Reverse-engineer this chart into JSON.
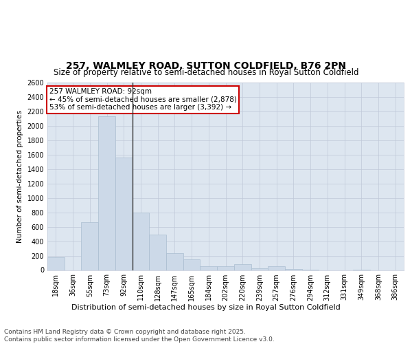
{
  "title_line1": "257, WALMLEY ROAD, SUTTON COLDFIELD, B76 2PN",
  "title_line2": "Size of property relative to semi-detached houses in Royal Sutton Coldfield",
  "xlabel": "Distribution of semi-detached houses by size in Royal Sutton Coldfield",
  "ylabel": "Number of semi-detached properties",
  "categories": [
    "18sqm",
    "36sqm",
    "55sqm",
    "73sqm",
    "92sqm",
    "110sqm",
    "128sqm",
    "147sqm",
    "165sqm",
    "184sqm",
    "202sqm",
    "220sqm",
    "239sqm",
    "257sqm",
    "276sqm",
    "294sqm",
    "312sqm",
    "331sqm",
    "349sqm",
    "368sqm",
    "386sqm"
  ],
  "values": [
    175,
    0,
    660,
    2130,
    1560,
    800,
    490,
    230,
    150,
    55,
    55,
    85,
    20,
    55,
    18,
    8,
    0,
    0,
    8,
    0,
    0
  ],
  "bar_color": "#ccd9e8",
  "bar_edge_color": "#aabdd0",
  "highlight_index": 4,
  "highlight_line_color": "#333333",
  "annotation_text": "257 WALMLEY ROAD: 92sqm\n← 45% of semi-detached houses are smaller (2,878)\n53% of semi-detached houses are larger (3,392) →",
  "annotation_box_color": "#ffffff",
  "annotation_box_edge_color": "#cc0000",
  "ylim": [
    0,
    2600
  ],
  "yticks": [
    0,
    200,
    400,
    600,
    800,
    1000,
    1200,
    1400,
    1600,
    1800,
    2000,
    2200,
    2400,
    2600
  ],
  "grid_color": "#c0c8d8",
  "bg_color": "#dde6f0",
  "footer_text": "Contains HM Land Registry data © Crown copyright and database right 2025.\nContains public sector information licensed under the Open Government Licence v3.0.",
  "title_fontsize": 10,
  "subtitle_fontsize": 8.5,
  "xlabel_fontsize": 8,
  "ylabel_fontsize": 7.5,
  "tick_fontsize": 7,
  "annotation_fontsize": 7.5,
  "footer_fontsize": 6.5
}
